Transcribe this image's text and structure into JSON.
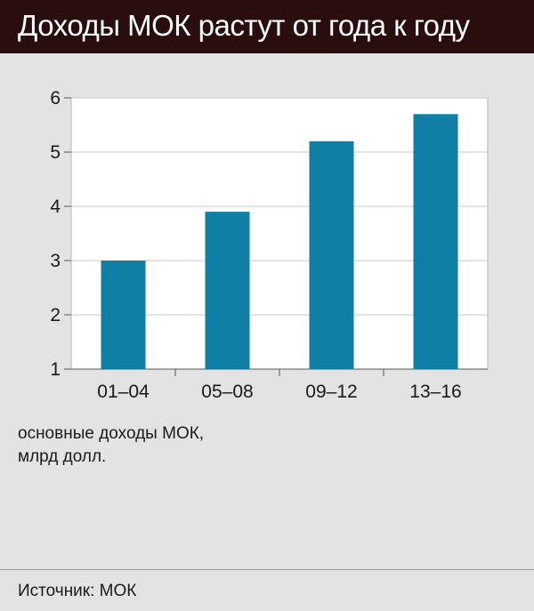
{
  "header": {
    "title": "Доходы МОК растут от года к году"
  },
  "note": {
    "line1": "основные доходы МОК,",
    "line2": "млрд долл."
  },
  "footer": {
    "source": "Источник: МОК"
  },
  "colors": {
    "bar": "#0f7fa6",
    "header_bg": "#2a0e0e",
    "background": "#e3e3e3",
    "plot_bg": "#ffffff",
    "grid": "#c8c8c8"
  },
  "chart_data": {
    "type": "bar",
    "title": "Доходы МОК растут от года к году",
    "xlabel": "",
    "ylabel": "",
    "categories": [
      "01–04",
      "05–08",
      "09–12",
      "13–16"
    ],
    "values": [
      3.0,
      3.9,
      5.2,
      5.7
    ],
    "ylim": [
      1,
      6
    ],
    "yticks": [
      1,
      2,
      3,
      4,
      5,
      6
    ],
    "grid": true,
    "legend": "none"
  }
}
